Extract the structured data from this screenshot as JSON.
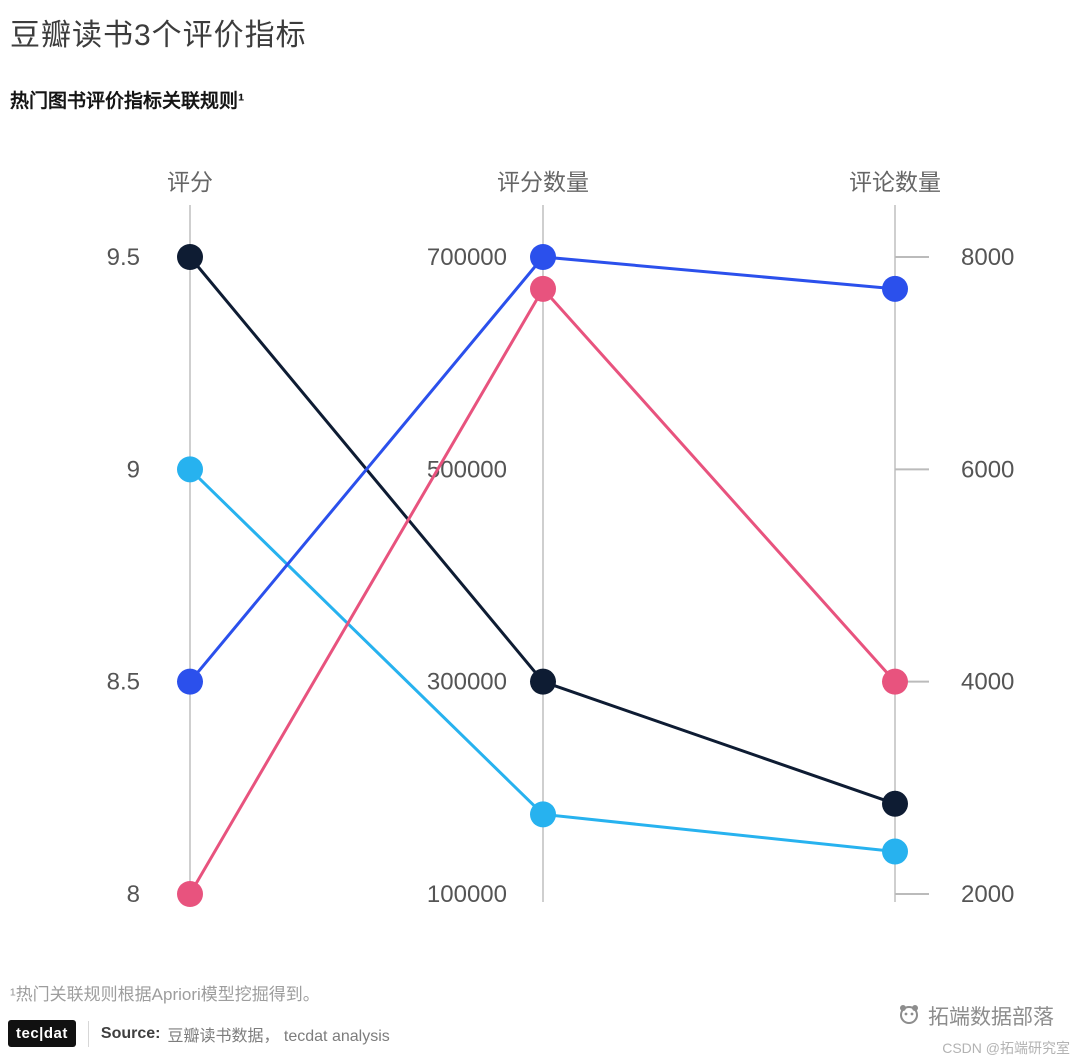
{
  "header": {
    "title": "豆瓣读书3个评价指标",
    "subtitle": "热门图书评价指标关联规则¹"
  },
  "chart_data": {
    "type": "line",
    "variant": "parallel-coordinates",
    "grid": false,
    "legend": "none",
    "axes": [
      {
        "id": "rating",
        "title": "评分",
        "min": 8,
        "max": 9.5,
        "tick_values": [
          8,
          8.5,
          9,
          9.5
        ],
        "tick_labels": [
          "8",
          "8.5",
          "9",
          "9.5"
        ],
        "label_side": "left",
        "tick_marks": false
      },
      {
        "id": "rating-count",
        "title": "评分数量",
        "min": 100000,
        "max": 700000,
        "tick_values": [
          100000,
          300000,
          500000,
          700000
        ],
        "tick_labels": [
          "100000",
          "300000",
          "500000",
          "700000"
        ],
        "label_side": "left",
        "tick_marks": false
      },
      {
        "id": "comment-count",
        "title": "评论数量",
        "min": 2000,
        "max": 8000,
        "tick_values": [
          2000,
          4000,
          6000,
          8000
        ],
        "tick_labels": [
          "2000",
          "4000",
          "6000",
          "8000"
        ],
        "label_side": "right",
        "tick_marks": true
      }
    ],
    "series": [
      {
        "name": "dark-navy",
        "color": "#0e1c33",
        "values": [
          9.5,
          300000,
          2850
        ]
      },
      {
        "name": "cyan",
        "color": "#27b2ef",
        "values": [
          9,
          175000,
          2400
        ]
      },
      {
        "name": "blue",
        "color": "#2b50ec",
        "values": [
          8.5,
          700000,
          7700
        ]
      },
      {
        "name": "pink",
        "color": "#e8537e",
        "values": [
          8,
          670000,
          4000
        ]
      }
    ],
    "style": {
      "axis_line_color": "#cfcfcf",
      "tick_mark_color": "#bbbbbb",
      "tick_label_color": "#555555",
      "axis_title_color": "#666666"
    }
  },
  "footnote": "¹热门关联规则根据Apriori模型挖掘得到。",
  "footer": {
    "logo": "tec|dat",
    "source_label": "Source:",
    "source_text": "豆瓣读书数据， tecdat analysis"
  },
  "watermark": {
    "text": "拓端数据部落",
    "csdn": "CSDN @拓端研究室"
  }
}
